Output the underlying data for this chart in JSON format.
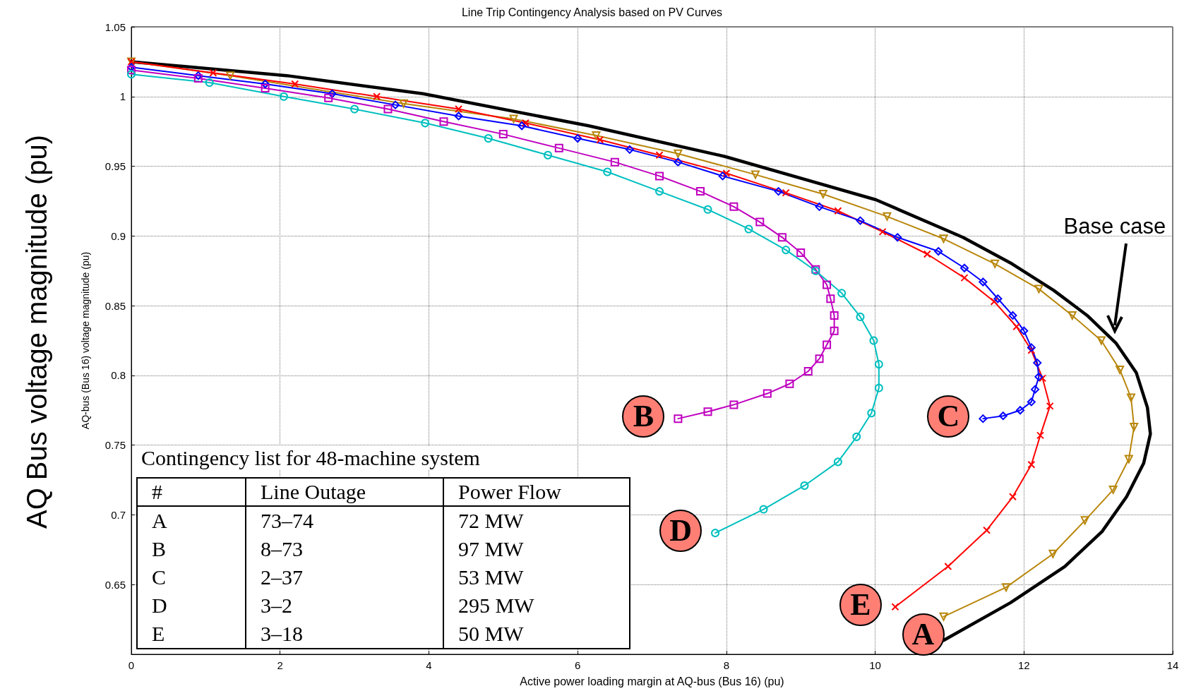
{
  "chart_data": {
    "type": "line",
    "title": "Line Trip Contingency Analysis based on PV Curves",
    "xlabel": "Active power loading margin at AQ-bus (Bus 16) (pu)",
    "ylabel": "AQ-bus (Bus 16) voltage magnitude (pu)",
    "xlim": [
      0,
      14
    ],
    "xticks": [
      0,
      2,
      4,
      6,
      8,
      10,
      12,
      14
    ],
    "ylim": [
      0.6,
      1.05
    ],
    "yticks": [
      0.65,
      0.7,
      0.75,
      0.8,
      0.85,
      0.9,
      0.95,
      1,
      1.05
    ],
    "grid": true,
    "line_style": "solid",
    "series": [
      {
        "name": "Base case",
        "color": "#000000",
        "marker": "none",
        "x": [
          0,
          2.09,
          3.92,
          6.15,
          7.98,
          10.01,
          11.18,
          11.84,
          12.4,
          12.85,
          13.24,
          13.51,
          13.66,
          13.7,
          13.61,
          13.38,
          13.05,
          12.55,
          11.82,
          10.92
        ],
        "values": [
          1.025,
          1.015,
          1.002,
          0.979,
          0.957,
          0.926,
          0.899,
          0.88,
          0.861,
          0.843,
          0.823,
          0.802,
          0.777,
          0.758,
          0.737,
          0.713,
          0.688,
          0.663,
          0.637,
          0.61
        ]
      },
      {
        "name": "A",
        "color": "#b8860b",
        "marker": "triangle",
        "x": [
          0,
          1.33,
          3.66,
          5.14,
          6.25,
          7.35,
          8.39,
          9.3,
          10.16,
          10.92,
          11.61,
          12.2,
          12.65,
          13.04,
          13.29,
          13.44,
          13.48,
          13.41,
          13.2,
          12.82,
          12.39,
          11.76,
          10.92
        ],
        "values": [
          1.025,
          1.015,
          0.995,
          0.984,
          0.972,
          0.959,
          0.944,
          0.93,
          0.914,
          0.898,
          0.88,
          0.862,
          0.843,
          0.825,
          0.804,
          0.784,
          0.763,
          0.74,
          0.718,
          0.696,
          0.672,
          0.648,
          0.627
        ]
      },
      {
        "name": "E",
        "color": "#ff0000",
        "marker": "cross",
        "x": [
          0,
          1.1,
          2.2,
          3.3,
          4.4,
          5.3,
          6.3,
          7.1,
          8.0,
          8.8,
          9.5,
          10.1,
          10.7,
          11.2,
          11.6,
          11.9,
          12.1,
          12.25,
          12.35,
          12.22,
          12.1,
          11.85,
          11.5,
          10.98,
          10.27
        ],
        "values": [
          1.025,
          1.017,
          1.009,
          1.0,
          0.991,
          0.981,
          0.969,
          0.958,
          0.945,
          0.931,
          0.918,
          0.903,
          0.887,
          0.87,
          0.853,
          0.835,
          0.818,
          0.798,
          0.778,
          0.757,
          0.736,
          0.713,
          0.689,
          0.663,
          0.634
        ]
      },
      {
        "name": "C",
        "color": "#0000ff",
        "marker": "diamond",
        "x": [
          0,
          0.9,
          1.8,
          2.7,
          3.55,
          4.4,
          5.25,
          6.0,
          6.7,
          7.35,
          7.95,
          8.7,
          9.25,
          9.8,
          10.3,
          10.85,
          11.2,
          11.45,
          11.65,
          11.85,
          12.0,
          12.1,
          12.18,
          12.2,
          12.15,
          12.1,
          11.95,
          11.72,
          11.45
        ],
        "values": [
          1.021,
          1.015,
          1.009,
          1.002,
          0.994,
          0.986,
          0.979,
          0.97,
          0.962,
          0.953,
          0.943,
          0.932,
          0.921,
          0.911,
          0.899,
          0.889,
          0.877,
          0.867,
          0.855,
          0.843,
          0.832,
          0.82,
          0.809,
          0.799,
          0.79,
          0.781,
          0.775,
          0.771,
          0.769
        ]
      },
      {
        "name": "B",
        "color": "#bf00bf",
        "marker": "square",
        "x": [
          0,
          0.9,
          1.8,
          2.65,
          3.45,
          4.2,
          5.0,
          5.75,
          6.5,
          7.1,
          7.65,
          8.1,
          8.45,
          8.75,
          9.0,
          9.2,
          9.35,
          9.4,
          9.45,
          9.45,
          9.35,
          9.25,
          9.1,
          8.85,
          8.55,
          8.1,
          7.75,
          7.35
        ],
        "values": [
          1.019,
          1.013,
          1.006,
          0.999,
          0.991,
          0.982,
          0.973,
          0.963,
          0.953,
          0.943,
          0.932,
          0.921,
          0.91,
          0.899,
          0.888,
          0.876,
          0.865,
          0.855,
          0.843,
          0.832,
          0.822,
          0.812,
          0.803,
          0.794,
          0.787,
          0.779,
          0.774,
          0.769
        ]
      },
      {
        "name": "D",
        "color": "#00bfbf",
        "marker": "circle",
        "x": [
          0,
          1.05,
          2.05,
          3.0,
          3.95,
          4.8,
          5.6,
          6.4,
          7.1,
          7.75,
          8.3,
          8.8,
          9.2,
          9.55,
          9.8,
          9.98,
          10.05,
          10.05,
          9.95,
          9.75,
          9.5,
          9.05,
          8.5,
          7.85
        ],
        "values": [
          1.016,
          1.01,
          1.0,
          0.991,
          0.981,
          0.97,
          0.958,
          0.946,
          0.932,
          0.919,
          0.905,
          0.89,
          0.875,
          0.859,
          0.842,
          0.825,
          0.808,
          0.791,
          0.773,
          0.756,
          0.738,
          0.721,
          0.704,
          0.687
        ]
      }
    ],
    "annotations": [
      "AQ Bus voltage magnitude (pu)",
      "Contingency list for 48-machine system",
      "#",
      "Line Outage",
      "Power Flow",
      "A",
      "73–74",
      "72 MW",
      "B",
      "8–73",
      "97 MW",
      "C",
      "2–37",
      "53 MW",
      "D",
      "3–2",
      "295 MW",
      "E",
      "3–18",
      "50 MW"
    ]
  }
}
